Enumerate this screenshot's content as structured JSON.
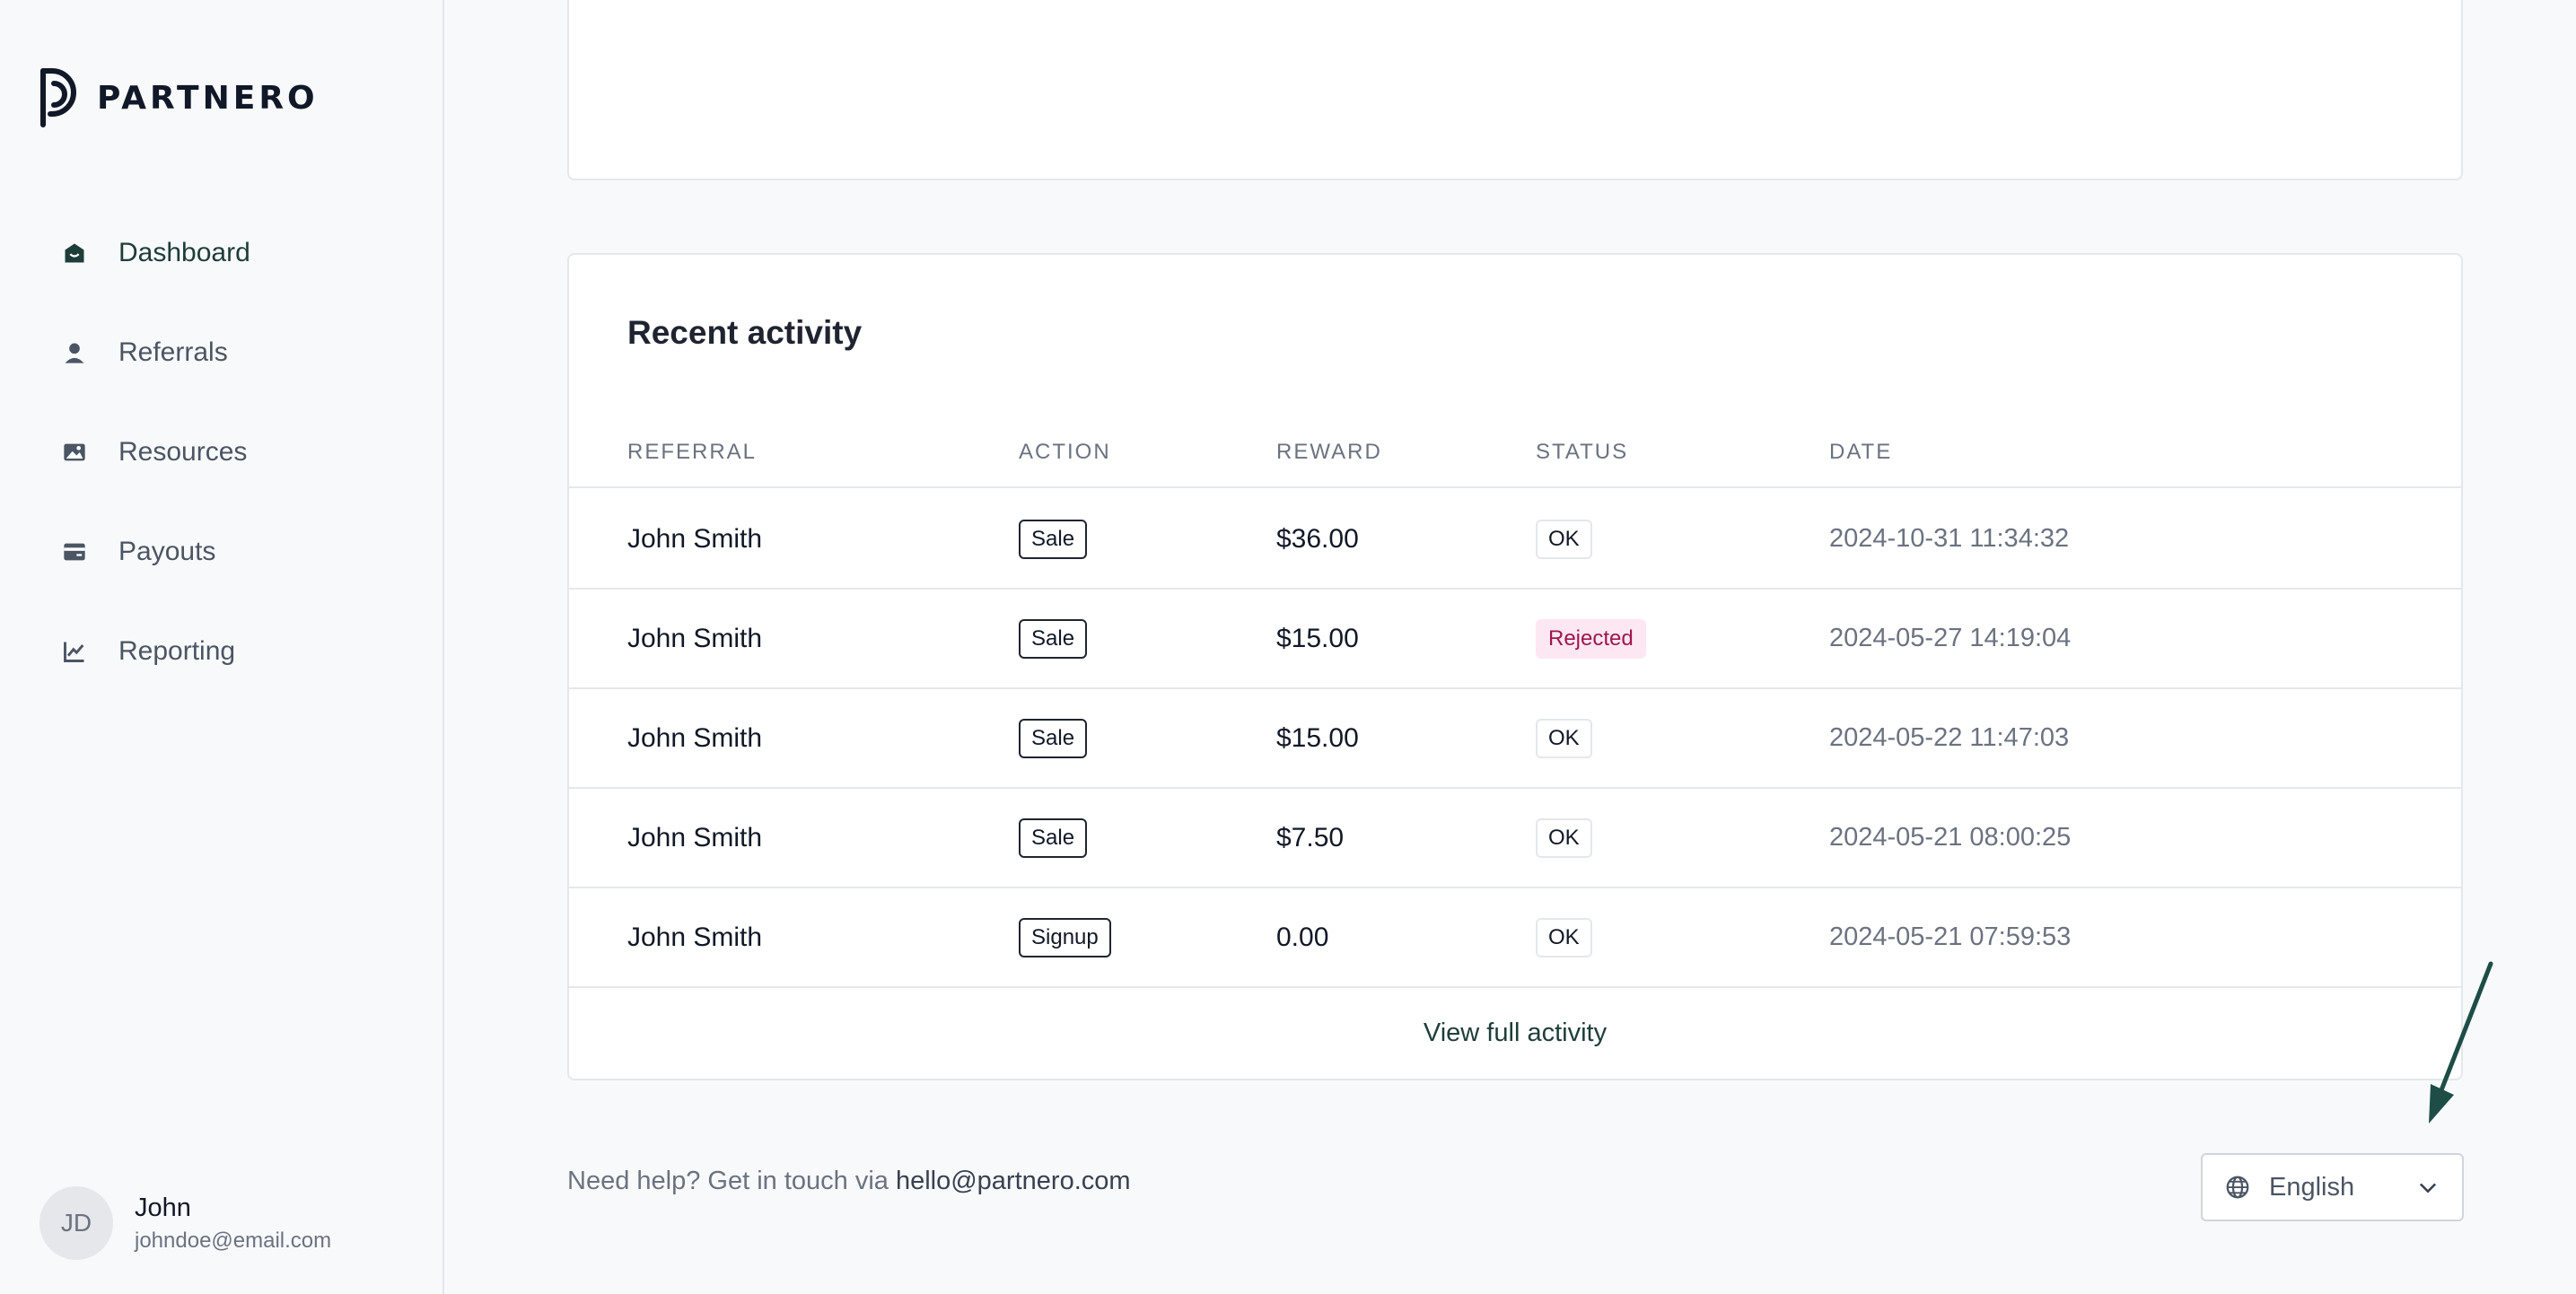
{
  "brand": {
    "name": "PARTNERO",
    "icon": "partnero-logo"
  },
  "sidebar": {
    "items": [
      {
        "label": "Dashboard",
        "icon": "home-icon",
        "active": true
      },
      {
        "label": "Referrals",
        "icon": "person-icon",
        "active": false
      },
      {
        "label": "Resources",
        "icon": "image-icon",
        "active": false
      },
      {
        "label": "Payouts",
        "icon": "card-icon",
        "active": false
      },
      {
        "label": "Reporting",
        "icon": "chart-icon",
        "active": false
      }
    ]
  },
  "user": {
    "initials": "JD",
    "name": "John",
    "email": "johndoe@email.com"
  },
  "activity": {
    "title": "Recent activity",
    "columns": [
      "REFERRAL",
      "ACTION",
      "REWARD",
      "STATUS",
      "DATE"
    ],
    "rows": [
      {
        "referral": "John Smith",
        "action": "Sale",
        "reward": "$36.00",
        "status": "OK",
        "date": "2024-10-31 11:34:32"
      },
      {
        "referral": "John Smith",
        "action": "Sale",
        "reward": "$15.00",
        "status": "Rejected",
        "date": "2024-05-27 14:19:04"
      },
      {
        "referral": "John Smith",
        "action": "Sale",
        "reward": "$15.00",
        "status": "OK",
        "date": "2024-05-22 11:47:03"
      },
      {
        "referral": "John Smith",
        "action": "Sale",
        "reward": "$7.50",
        "status": "OK",
        "date": "2024-05-21 08:00:25"
      },
      {
        "referral": "John Smith",
        "action": "Signup",
        "reward": "0.00",
        "status": "OK",
        "date": "2024-05-21 07:59:53"
      }
    ],
    "view_full_label": "View full activity"
  },
  "footer": {
    "help_text": "Need help? Get in touch via ",
    "help_email": "hello@partnero.com",
    "language": "English"
  },
  "colors": {
    "accent": "#1e3d3a",
    "rejected_bg": "#fce7f3",
    "rejected_text": "#9d174d",
    "arrow": "#1e4d47"
  }
}
